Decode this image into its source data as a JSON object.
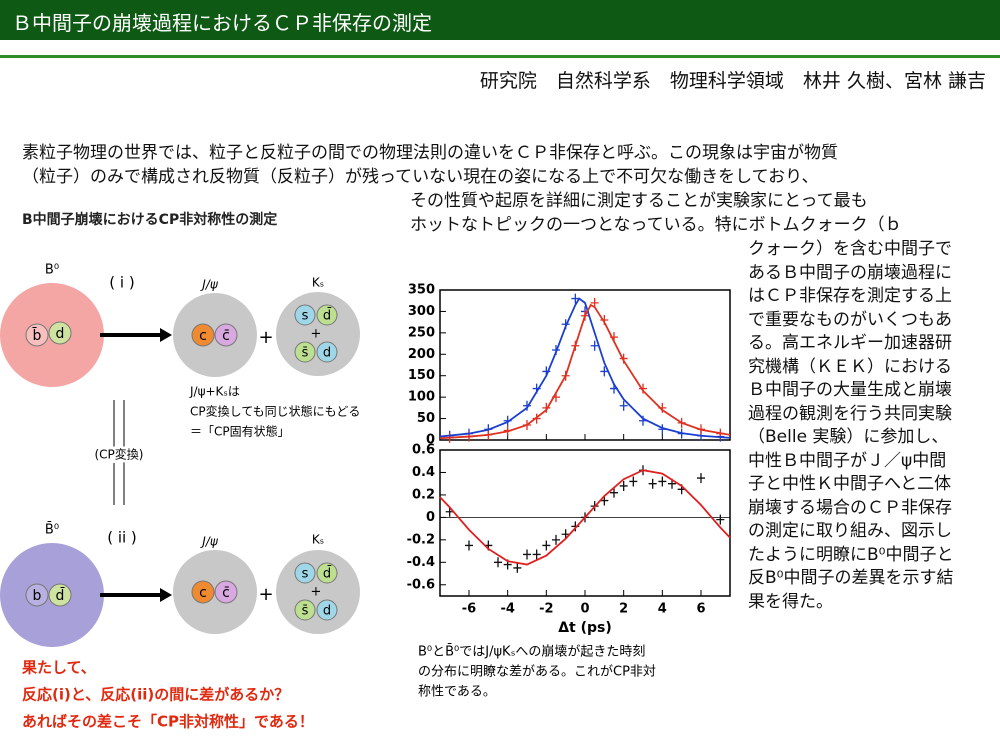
{
  "header": {
    "title": "Ｂ中間子の崩壊過程におけるＣＰ非保存の測定",
    "authors": "研究院　自然科学系　物理科学領域　林井 久樹、宮林 謙吉"
  },
  "body": {
    "full_lines": [
      "素粒子物理の世界では、粒子と反粒子の間での物理法則の違いをＣＰ非保存と呼ぶ。この現象は宇宙が物質",
      "（粒子）のみで構成され反物質（反粒子）が残っていない現在の姿になる上で不可欠な働きをしており、"
    ],
    "mid_lines": [
      "その性質や起原を詳細に測定することが実験家にとって最も",
      "ホットなトピックの一つとなっている。特にボトムクォーク（ｂ"
    ],
    "column_lines": [
      "クォーク）を含む中間子で",
      "あるＢ中間子の崩壊過程に",
      "はＣＰ非保存を測定する上",
      "で重要なものがいくつもあ",
      "る。高エネルギー加速器研",
      "究機構（ＫＥＫ）における",
      "Ｂ中間子の大量生成と崩壊",
      "過程の観測を行う共同実験",
      "（Belle 実験）に参加し、",
      "中性Ｂ中間子がＪ／ψ中間",
      "子と中性Ｋ中間子へと二体",
      "崩壊する場合のＣＰ非保存",
      "の測定に取り組み、図示し",
      "たように明瞭にB⁰中間子と",
      "反B⁰中間子の差異を示す結",
      "果を得た。"
    ]
  },
  "diagram": {
    "title": "B中間子崩壊におけるCP非対称性の測定",
    "b0": "B⁰",
    "b0bar": "B̄⁰",
    "r1": "( i )",
    "r2": "( ii )",
    "jpsi": "J/ψ",
    "ks": "Kₛ",
    "plus": "+",
    "cp_change": "(CP変換)",
    "note": [
      "J/ψ+Kₛは",
      "CP変換しても同じ状態にもどる",
      "＝「CP固有状態」"
    ],
    "quarks": {
      "b": "b",
      "bbar": "b̄",
      "d": "d",
      "dbar": "d̄",
      "c": "c",
      "cbar": "c̄",
      "s": "s",
      "sbar": "s̄"
    },
    "question": [
      "果たして、",
      "反応(i)と、反応(ii)の間に差があるか？",
      "あればその差こそ「CP非対称性」である！"
    ]
  },
  "caption": [
    "B⁰とB̄⁰ではJ/ψKₛへの崩壊が起きた時刻",
    "の分布に明瞭な差がある。これがCP非対",
    "称性である。"
  ],
  "chart_data": [
    {
      "type": "scatter",
      "xlim": [
        -7.5,
        7.5
      ],
      "xticks": [
        -6,
        -4,
        -2,
        0,
        2,
        4,
        6
      ],
      "ylim": [
        0,
        350
      ],
      "yticks": [
        0,
        50,
        100,
        150,
        200,
        250,
        300,
        350
      ],
      "series": [
        {
          "style": "points",
          "color": "#1a3fd0",
          "x": [
            -7,
            -6,
            -5,
            -4,
            -3,
            -2.5,
            -2,
            -1.5,
            -1,
            -0.5,
            0,
            0.5,
            1,
            1.5,
            2,
            3,
            4,
            5,
            6,
            7
          ],
          "values": [
            10,
            15,
            25,
            45,
            80,
            120,
            160,
            210,
            270,
            330,
            300,
            220,
            160,
            120,
            80,
            45,
            25,
            15,
            10,
            8
          ]
        },
        {
          "style": "points",
          "color": "#e03020",
          "x": [
            -7,
            -6,
            -5,
            -4,
            -3,
            -2.5,
            -2,
            -1.5,
            -1,
            -0.5,
            0,
            0.5,
            1,
            1.5,
            2,
            3,
            4,
            5,
            6,
            7
          ],
          "values": [
            5,
            8,
            12,
            22,
            35,
            50,
            75,
            100,
            150,
            220,
            290,
            320,
            280,
            240,
            190,
            120,
            75,
            40,
            25,
            15
          ]
        },
        {
          "style": "line",
          "color": "#1a3fd0",
          "x": [
            -7.5,
            -6,
            -5,
            -4,
            -3,
            -2,
            -1.5,
            -1,
            -0.5,
            -0.3,
            0,
            0.5,
            1,
            1.5,
            2,
            3,
            4,
            5,
            6,
            7.5
          ],
          "values": [
            8,
            15,
            24,
            42,
            75,
            150,
            205,
            265,
            315,
            330,
            320,
            250,
            180,
            130,
            95,
            50,
            28,
            16,
            10,
            5
          ]
        },
        {
          "style": "line",
          "color": "#e03020",
          "x": [
            -7.5,
            -6,
            -5,
            -4,
            -3,
            -2,
            -1,
            -0.5,
            0,
            0.3,
            0.5,
            1,
            1.5,
            2,
            3,
            4,
            5,
            6,
            7.5
          ],
          "values": [
            4,
            8,
            12,
            20,
            35,
            70,
            150,
            220,
            290,
            315,
            310,
            275,
            230,
            185,
            115,
            70,
            40,
            24,
            12
          ]
        }
      ]
    },
    {
      "type": "scatter",
      "xlim": [
        -7.5,
        7.5
      ],
      "xticks": [
        -6,
        -4,
        -2,
        0,
        2,
        4,
        6
      ],
      "xlabel": "Δt (ps)",
      "ylim": [
        -0.7,
        0.6
      ],
      "yticks": [
        -0.6,
        -0.4,
        -0.2,
        0,
        0.2,
        0.4,
        0.6
      ],
      "series": [
        {
          "style": "points",
          "color": "#111111",
          "x": [
            -7,
            -6,
            -5,
            -4.5,
            -4,
            -3.5,
            -3,
            -2.5,
            -2,
            -1.5,
            -1,
            -0.5,
            0,
            0.5,
            1,
            1.5,
            2,
            2.5,
            3,
            3.5,
            4,
            4.5,
            5,
            6,
            7
          ],
          "values": [
            0.05,
            -0.25,
            -0.25,
            -0.4,
            -0.42,
            -0.45,
            -0.33,
            -0.33,
            -0.25,
            -0.2,
            -0.15,
            -0.08,
            0,
            0.1,
            0.15,
            0.22,
            0.28,
            0.32,
            0.42,
            0.3,
            0.32,
            0.3,
            0.25,
            0.35,
            -0.02
          ]
        },
        {
          "style": "line",
          "color": "#e02020",
          "x": [
            -7.5,
            -7,
            -6,
            -5,
            -4,
            -3,
            -2,
            -1,
            0,
            1,
            2,
            3,
            4,
            5,
            6,
            7,
            7.5
          ],
          "values": [
            0.18,
            0.09,
            -0.11,
            -0.28,
            -0.39,
            -0.42,
            -0.34,
            -0.19,
            0,
            0.19,
            0.34,
            0.42,
            0.39,
            0.28,
            0.11,
            -0.09,
            -0.18
          ]
        }
      ]
    }
  ]
}
